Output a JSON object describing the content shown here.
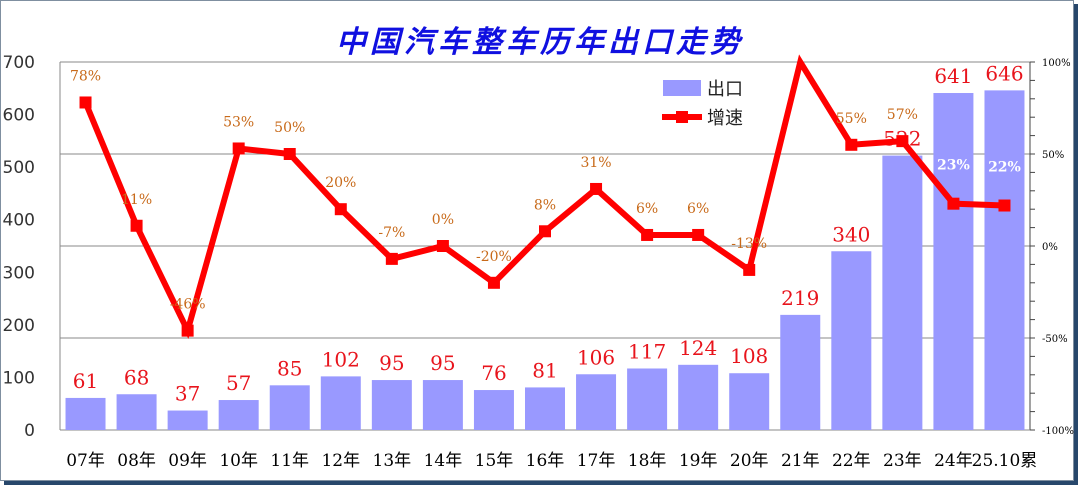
{
  "chart_data": {
    "type": "bar+line",
    "title": "中国汽车整车历年出口走势",
    "categories": [
      "07年",
      "08年",
      "09年",
      "10年",
      "11年",
      "12年",
      "13年",
      "14年",
      "15年",
      "16年",
      "17年",
      "18年",
      "19年",
      "20年",
      "21年",
      "22年",
      "23年",
      "24年",
      "25.10累"
    ],
    "series": [
      {
        "name": "出口",
        "type": "bar",
        "axis": "left",
        "color": "#9999ff",
        "values": [
          61,
          68,
          37,
          57,
          85,
          102,
          95,
          95,
          76,
          81,
          106,
          117,
          124,
          108,
          219,
          340,
          522,
          641,
          646
        ]
      },
      {
        "name": "增速",
        "type": "line",
        "axis": "right",
        "color": "#ff0000",
        "values": [
          78,
          11,
          -46,
          53,
          50,
          20,
          -7,
          0,
          -20,
          8,
          31,
          6,
          6,
          -13,
          101,
          55,
          57,
          23,
          22
        ],
        "labels": [
          "78%",
          "11%",
          "-46%",
          "53%",
          "50%",
          "20%",
          "-7%",
          "0%",
          "-20%",
          "8%",
          "31%",
          "6%",
          "6%",
          "-13%",
          "",
          "55%",
          "57%",
          "23%",
          "22%"
        ]
      }
    ],
    "ylim_left": [
      0,
      700
    ],
    "yticks_left": [
      "0",
      "100",
      "200",
      "300",
      "400",
      "500",
      "600",
      "700"
    ],
    "ylim_right": [
      -100,
      100
    ],
    "yticks_right": [
      "-100%",
      "-50%",
      "0%",
      "50%",
      "100%"
    ],
    "legend": "top-right",
    "grid": "horizontal at right-axis major ticks"
  }
}
